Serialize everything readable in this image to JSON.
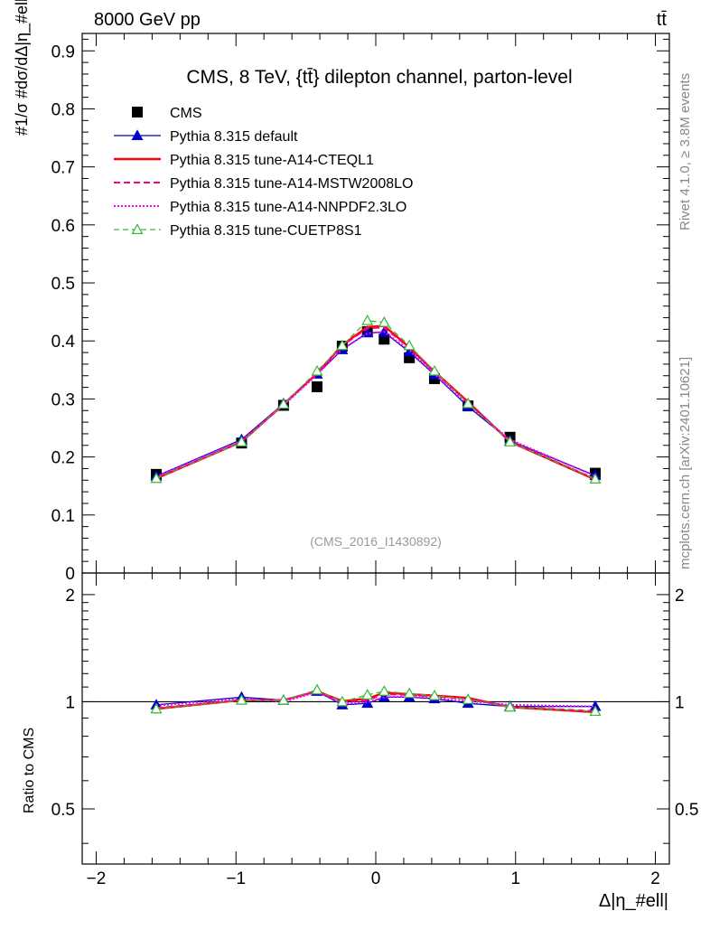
{
  "header": {
    "left": "8000 GeV pp",
    "right": "tt̄"
  },
  "side_labels": {
    "rivet": "Rivet 4.1.0, ≥ 3.8M events",
    "mcplots": "mcplots.cern.ch [arXiv:2401.10621]"
  },
  "chart_data": [
    {
      "type": "line",
      "panel": "main",
      "title": "CMS, 8 TeV, {tt̄} dilepton channel, parton-level",
      "watermark": "(CMS_2016_I1430892)",
      "ylabel": "#1/σ #dσ/dΔ|η_#ell|",
      "xlabel": "Δ|η_#ell|",
      "xlim": [
        -2.1,
        2.1
      ],
      "ylim": [
        0,
        0.93
      ],
      "x_ticks": [
        "−2",
        "−1",
        "0",
        "1",
        "2"
      ],
      "y_ticks": [
        "0",
        "0.1",
        "0.2",
        "0.3",
        "0.4",
        "0.5",
        "0.6",
        "0.7",
        "0.8",
        "0.9"
      ],
      "x": [
        -1.57,
        -0.96,
        -0.66,
        -0.42,
        -0.24,
        -0.06,
        0.06,
        0.24,
        0.42,
        0.66,
        0.96,
        1.57
      ],
      "series": [
        {
          "name": "CMS",
          "color": "#000000",
          "style": "square",
          "values": [
            0.17,
            0.224,
            0.289,
            0.321,
            0.391,
            0.416,
            0.403,
            0.371,
            0.335,
            0.288,
            0.234,
            0.172
          ]
        },
        {
          "name": "Pythia 8.315 default",
          "color": "#0000cc",
          "style": "blue-triangle",
          "values": [
            0.167,
            0.23,
            0.292,
            0.343,
            0.385,
            0.414,
            0.415,
            0.381,
            0.342,
            0.287,
            0.228,
            0.168
          ]
        },
        {
          "name": "Pythia 8.315 tune-A14-CTEQL1",
          "color": "#ff0000",
          "style": "solid-red",
          "values": [
            0.163,
            0.226,
            0.291,
            0.344,
            0.393,
            0.424,
            0.426,
            0.389,
            0.347,
            0.295,
            0.226,
            0.161
          ]
        },
        {
          "name": "Pythia 8.315 tune-A14-MSTW2008LO",
          "color": "#ff0080",
          "style": "dashed-magenta",
          "values": [
            0.164,
            0.226,
            0.29,
            0.344,
            0.392,
            0.422,
            0.423,
            0.388,
            0.346,
            0.293,
            0.227,
            0.162
          ]
        },
        {
          "name": "Pythia 8.315 tune-A14-NNPDF2.3LO",
          "color": "#ff00ff",
          "style": "dotted-magenta",
          "values": [
            0.166,
            0.228,
            0.289,
            0.342,
            0.386,
            0.413,
            0.416,
            0.384,
            0.343,
            0.29,
            0.23,
            0.167
          ]
        },
        {
          "name": "Pythia 8.315 tune-CUETP8S1",
          "color": "#33bb33",
          "style": "dashed-green-open-triangle",
          "values": [
            0.163,
            0.226,
            0.291,
            0.348,
            0.392,
            0.435,
            0.432,
            0.392,
            0.348,
            0.292,
            0.226,
            0.162
          ]
        }
      ],
      "legend": "top-left"
    },
    {
      "type": "line",
      "panel": "ratio",
      "ylabel": "Ratio to CMS",
      "ylim": [
        0.35,
        2.3
      ],
      "y_ticks": [
        "0.5",
        "1",
        "2"
      ],
      "series": [
        {
          "name": "Pythia 8.315 default",
          "values": [
            0.98,
            1.03,
            1.01,
            1.07,
            0.98,
            0.99,
            1.03,
            1.03,
            1.02,
            0.99,
            0.97,
            0.97
          ]
        },
        {
          "name": "Pythia 8.315 tune-A14-CTEQL1",
          "values": [
            0.955,
            1.01,
            1.01,
            1.07,
            1.005,
            1.02,
            1.06,
            1.05,
            1.04,
            1.025,
            0.966,
            0.935
          ]
        },
        {
          "name": "Pythia 8.315 tune-A14-MSTW2008LO",
          "values": [
            0.96,
            1.01,
            1.01,
            1.07,
            1.0,
            1.01,
            1.05,
            1.045,
            1.035,
            1.02,
            0.97,
            0.94
          ]
        },
        {
          "name": "Pythia 8.315 tune-A14-NNPDF2.3LO",
          "values": [
            0.975,
            1.02,
            1.0,
            1.065,
            0.99,
            0.995,
            1.03,
            1.035,
            1.025,
            1.005,
            0.98,
            0.97
          ]
        },
        {
          "name": "Pythia 8.315 tune-CUETP8S1",
          "values": [
            0.955,
            1.01,
            1.01,
            1.08,
            1.0,
            1.045,
            1.07,
            1.055,
            1.04,
            1.015,
            0.966,
            0.94
          ]
        }
      ]
    }
  ]
}
